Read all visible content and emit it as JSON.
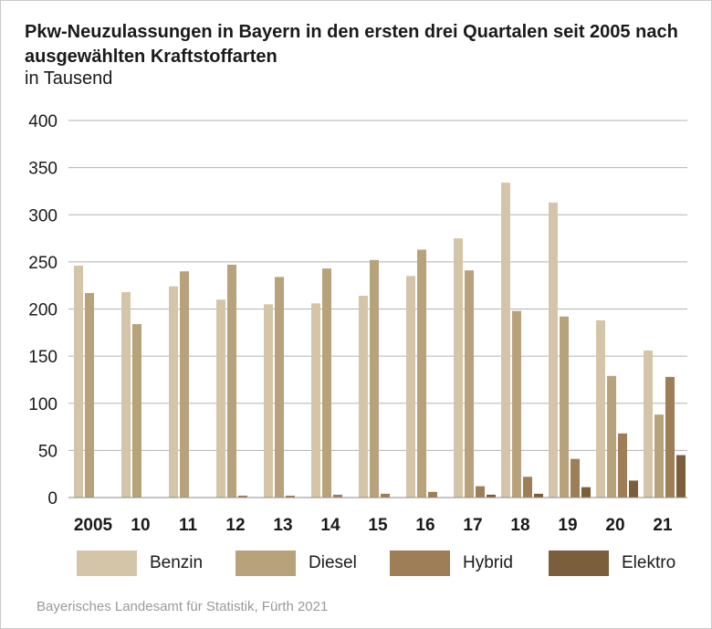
{
  "title": "Pkw-Neuzulassungen in Bayern in den ersten drei Quartalen seit 2005 nach ausgewählten Kraftstoffarten",
  "subtitle": "in Tausend",
  "source": "Bayerisches Landesamt für Statistik, Fürth 2021",
  "colors": {
    "Benzin": "#d4c5a8",
    "Diesel": "#b8a27c",
    "Hybrid": "#9e7e57",
    "Elektro": "#7b5f3c",
    "grid": "#b3b3b3",
    "text": "#1a1a1a"
  },
  "chart_data": {
    "type": "bar",
    "title": "Pkw-Neuzulassungen in Bayern in den ersten drei Quartalen seit 2005 nach ausgewählten Kraftstoffarten",
    "subtitle": "in Tausend",
    "categories": [
      "2005",
      "10",
      "11",
      "12",
      "13",
      "14",
      "15",
      "16",
      "17",
      "18",
      "19",
      "20",
      "21"
    ],
    "yticks": [
      "0",
      "50",
      "100",
      "150",
      "200",
      "250",
      "300",
      "350",
      "400"
    ],
    "ylim": [
      0,
      400
    ],
    "grid": true,
    "legend_position": "bottom",
    "series": [
      {
        "name": "Benzin",
        "values": [
          246,
          218,
          224,
          210,
          205,
          206,
          214,
          235,
          275,
          334,
          313,
          188,
          156
        ]
      },
      {
        "name": "Diesel",
        "values": [
          217,
          184,
          240,
          247,
          234,
          243,
          252,
          263,
          241,
          198,
          192,
          129,
          88
        ]
      },
      {
        "name": "Hybrid",
        "values": [
          0,
          0,
          0,
          2,
          2,
          3,
          4,
          6,
          12,
          22,
          41,
          68,
          128
        ]
      },
      {
        "name": "Elektro",
        "values": [
          0,
          0,
          0,
          0,
          0,
          0,
          0,
          0,
          3,
          4,
          11,
          18,
          45
        ]
      }
    ]
  }
}
